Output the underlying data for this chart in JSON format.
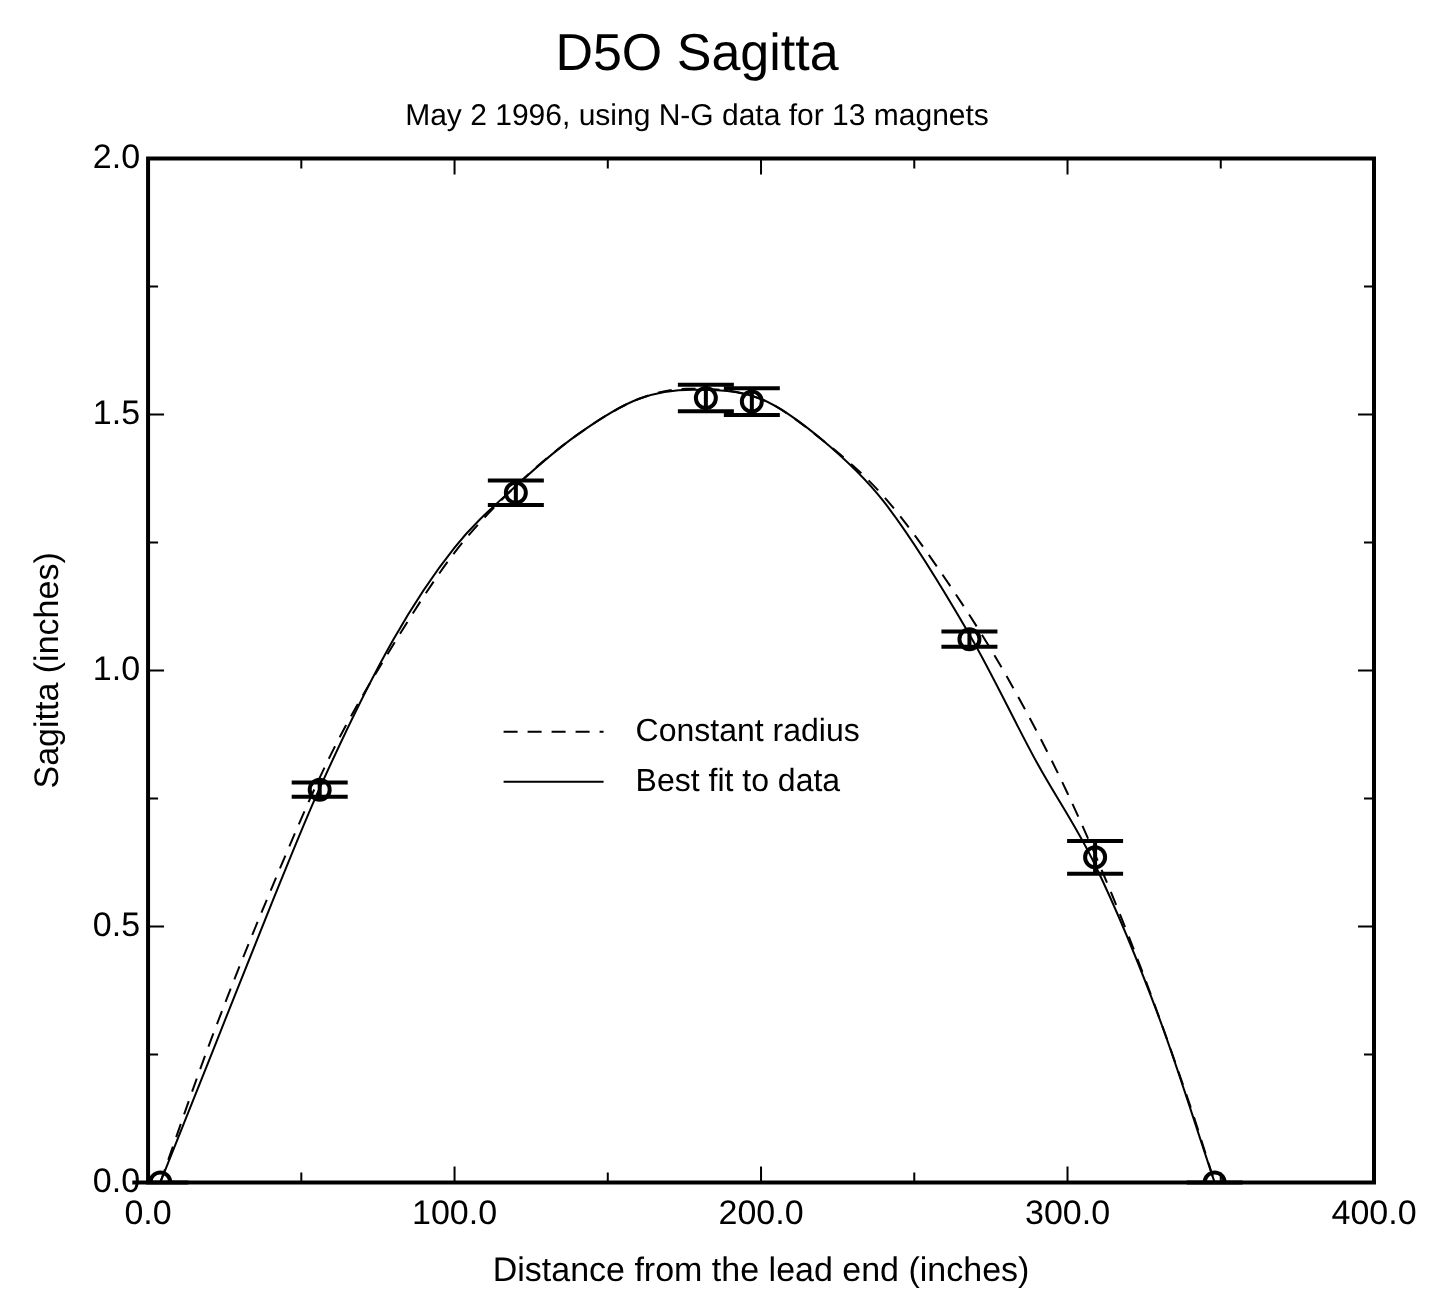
{
  "chart_data": {
    "type": "scatter",
    "title": "D5O Sagitta",
    "subtitle": "May 2 1996, using N-G data for 13 magnets",
    "xlabel": "Distance from the lead end (inches)",
    "ylabel": "Sagitta (inches)",
    "xlim": [
      0,
      400
    ],
    "ylim": [
      0,
      2
    ],
    "xticks": [
      {
        "value": 0,
        "label": "0.0"
      },
      {
        "value": 50,
        "label": null
      },
      {
        "value": 100,
        "label": "100.0"
      },
      {
        "value": 150,
        "label": null
      },
      {
        "value": 200,
        "label": "200.0"
      },
      {
        "value": 250,
        "label": null
      },
      {
        "value": 300,
        "label": "300.0"
      },
      {
        "value": 350,
        "label": null
      },
      {
        "value": 400,
        "label": "400.0"
      }
    ],
    "yticks": [
      {
        "value": 0,
        "label": "0.0"
      },
      {
        "value": 0.25,
        "label": null
      },
      {
        "value": 0.5,
        "label": "0.5"
      },
      {
        "value": 0.75,
        "label": null
      },
      {
        "value": 1,
        "label": "1.0"
      },
      {
        "value": 1.25,
        "label": null
      },
      {
        "value": 1.5,
        "label": "1.5"
      },
      {
        "value": 1.75,
        "label": null
      },
      {
        "value": 2,
        "label": "2.0"
      }
    ],
    "grid": false,
    "legend": "center",
    "marker": "circle",
    "series": [
      {
        "type": "scatter",
        "color": "#000000",
        "x": [
          4,
          56,
          120,
          182,
          197,
          268,
          309,
          348
        ],
        "values": [
          0,
          0.767,
          1.347,
          1.532,
          1.525,
          1.061,
          0.635,
          0
        ],
        "errors": [
          0,
          0.014,
          0.024,
          0.026,
          0.026,
          0.015,
          0.032,
          0
        ]
      },
      {
        "type": "line",
        "name": "Constant radius",
        "color": "#000000",
        "line_style": "dashed",
        "marker": "none",
        "x": [
          4,
          20,
          40,
          60,
          80,
          100,
          120,
          140,
          160,
          176,
          200,
          220,
          240,
          260,
          280,
          300,
          320,
          340,
          348
        ],
        "values": [
          0,
          0.27,
          0.57,
          0.84,
          1.05,
          1.23,
          1.36,
          1.46,
          1.53,
          1.55,
          1.53,
          1.45,
          1.34,
          1.18,
          0.99,
          0.76,
          0.48,
          0.15,
          0
        ]
      },
      {
        "type": "line",
        "name": "Best fit to data",
        "color": "#000000",
        "line_style": "solid",
        "marker": "none",
        "x": [
          4,
          20,
          40,
          56,
          80,
          100,
          120,
          140,
          160,
          178,
          200,
          220,
          240,
          268,
          290,
          309,
          330,
          348
        ],
        "values": [
          0,
          0.24,
          0.54,
          0.77,
          1.06,
          1.24,
          1.36,
          1.46,
          1.53,
          1.548,
          1.53,
          1.45,
          1.33,
          1.07,
          0.82,
          0.62,
          0.32,
          0
        ]
      }
    ]
  }
}
